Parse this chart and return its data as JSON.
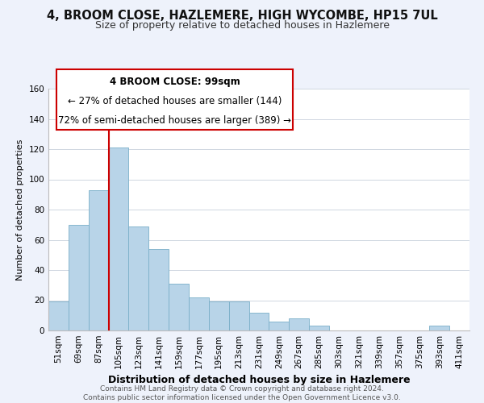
{
  "title": "4, BROOM CLOSE, HAZLEMERE, HIGH WYCOMBE, HP15 7UL",
  "subtitle": "Size of property relative to detached houses in Hazlemere",
  "xlabel": "Distribution of detached houses by size in Hazlemere",
  "ylabel": "Number of detached properties",
  "bar_labels": [
    "51sqm",
    "69sqm",
    "87sqm",
    "105sqm",
    "123sqm",
    "141sqm",
    "159sqm",
    "177sqm",
    "195sqm",
    "213sqm",
    "231sqm",
    "249sqm",
    "267sqm",
    "285sqm",
    "303sqm",
    "321sqm",
    "339sqm",
    "357sqm",
    "375sqm",
    "393sqm",
    "411sqm"
  ],
  "bar_values": [
    19,
    70,
    93,
    121,
    69,
    54,
    31,
    22,
    19,
    19,
    12,
    6,
    8,
    3,
    0,
    0,
    0,
    0,
    0,
    3,
    0
  ],
  "bar_color": "#b8d4e8",
  "bar_edge_color": "#7aafc8",
  "vline_color": "#cc0000",
  "vline_x_index": 3,
  "ylim": [
    0,
    160
  ],
  "yticks": [
    0,
    20,
    40,
    60,
    80,
    100,
    120,
    140,
    160
  ],
  "annotation_title": "4 BROOM CLOSE: 99sqm",
  "annotation_line1": "← 27% of detached houses are smaller (144)",
  "annotation_line2": "72% of semi-detached houses are larger (389) →",
  "footnote1": "Contains HM Land Registry data © Crown copyright and database right 2024.",
  "footnote2": "Contains public sector information licensed under the Open Government Licence v3.0.",
  "bg_color": "#eef2fb",
  "plot_bg_color": "#ffffff",
  "title_fontsize": 10.5,
  "subtitle_fontsize": 9,
  "annot_fontsize": 8.5,
  "tick_fontsize": 7.5,
  "ylabel_fontsize": 8,
  "xlabel_fontsize": 9,
  "footnote_fontsize": 6.5
}
